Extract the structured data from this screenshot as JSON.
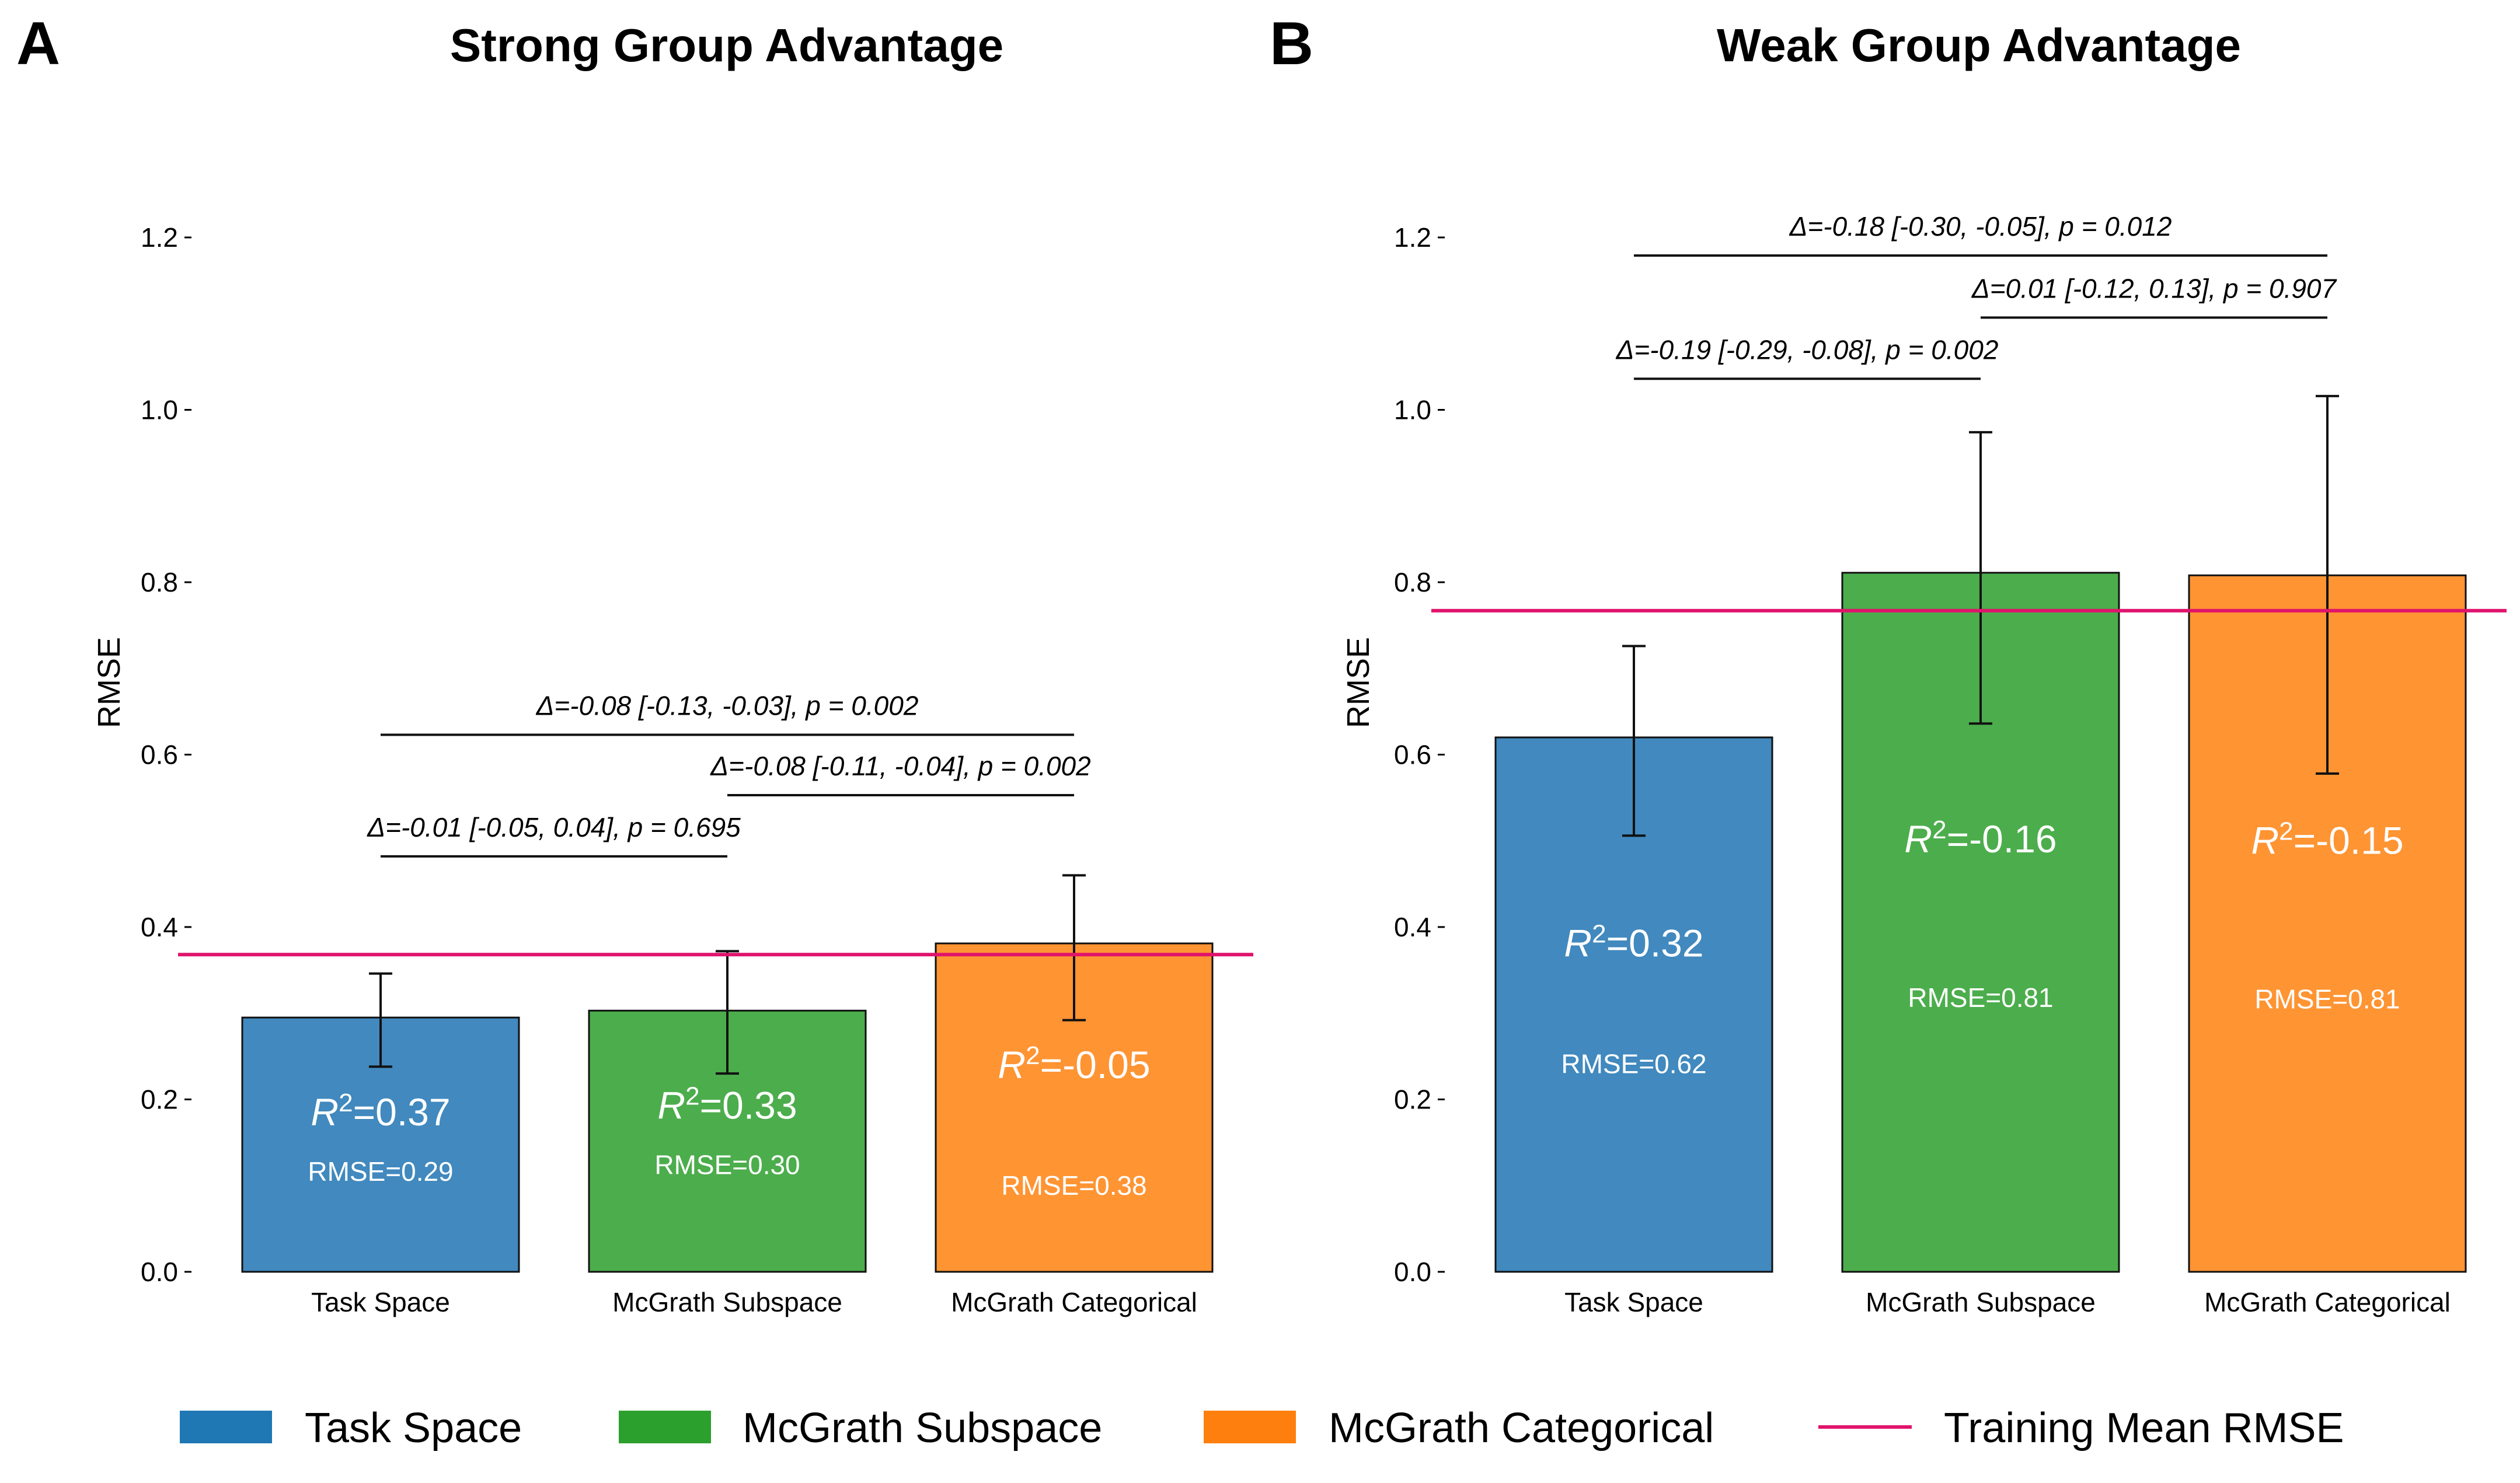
{
  "panels": [
    {
      "letter": "A",
      "title": "Strong Group Advantage",
      "ylabel": "RMSE"
    },
    {
      "letter": "B",
      "title": "Weak Group Advantage",
      "ylabel": "RMSE"
    }
  ],
  "legend": [
    {
      "label": "Task Space",
      "color": "#1f77b4",
      "kind": "patch"
    },
    {
      "label": "McGrath Subspace",
      "color": "#2ca02c",
      "kind": "patch"
    },
    {
      "label": "McGrath Categorical",
      "color": "#ff7f0e",
      "kind": "patch"
    },
    {
      "label": "Training Mean RMSE",
      "color": "#e0136b",
      "kind": "line"
    }
  ],
  "chart_data": [
    {
      "type": "bar",
      "panel": "A",
      "title": "Strong Group Advantage",
      "xlabel": "",
      "ylabel": "RMSE",
      "ylim": [
        0,
        1.3
      ],
      "yticks": [
        "0.0",
        "0.2",
        "0.4",
        "0.6",
        "0.8",
        "1.0",
        "1.2"
      ],
      "categories": [
        "Task Space",
        "McGrath Subspace",
        "McGrath Categorical"
      ],
      "colors": [
        "#4189be",
        "#4cad4c",
        "#ff9433"
      ],
      "values": [
        0.295,
        0.303,
        0.381
      ],
      "error_low": [
        0.238,
        0.23,
        0.292
      ],
      "error_high": [
        0.346,
        0.372,
        0.46
      ],
      "r2_labels": [
        "0.37",
        "0.33",
        "-0.05"
      ],
      "rmse_labels": [
        "RMSE=0.29",
        "RMSE=0.30",
        "RMSE=0.38"
      ],
      "baseline": 0.368,
      "comparisons": [
        {
          "from": 0,
          "to": 2,
          "y": 0.623,
          "label": "Δ=-0.08 [-0.13, -0.03], p = 0.002"
        },
        {
          "from": 1,
          "to": 2,
          "y": 0.553,
          "label": "Δ=-0.08 [-0.11, -0.04], p = 0.002"
        },
        {
          "from": 0,
          "to": 1,
          "y": 0.482,
          "label": "Δ=-0.01 [-0.05, 0.04], p = 0.695"
        }
      ]
    },
    {
      "type": "bar",
      "panel": "B",
      "title": "Weak Group Advantage",
      "xlabel": "",
      "ylabel": "RMSE",
      "ylim": [
        0,
        1.3
      ],
      "yticks": [
        "0.0",
        "0.2",
        "0.4",
        "0.6",
        "0.8",
        "1.0",
        "1.2"
      ],
      "categories": [
        "Task Space",
        "McGrath Subspace",
        "McGrath Categorical"
      ],
      "colors": [
        "#4189be",
        "#4cad4c",
        "#ff9433"
      ],
      "values": [
        0.62,
        0.811,
        0.808
      ],
      "error_low": [
        0.506,
        0.636,
        0.578
      ],
      "error_high": [
        0.726,
        0.974,
        1.016
      ],
      "r2_labels": [
        "0.32",
        "-0.16",
        "-0.15"
      ],
      "rmse_labels": [
        "RMSE=0.62",
        "RMSE=0.81",
        "RMSE=0.81"
      ],
      "baseline": 0.767,
      "comparisons": [
        {
          "from": 0,
          "to": 2,
          "y": 1.179,
          "label": "Δ=-0.18 [-0.30, -0.05], p = 0.012"
        },
        {
          "from": 1,
          "to": 2,
          "y": 1.107,
          "label": "Δ=0.01 [-0.12, 0.13], p = 0.907"
        },
        {
          "from": 0,
          "to": 1,
          "y": 1.036,
          "label": "Δ=-0.19 [-0.29, -0.08], p = 0.002"
        }
      ]
    }
  ]
}
